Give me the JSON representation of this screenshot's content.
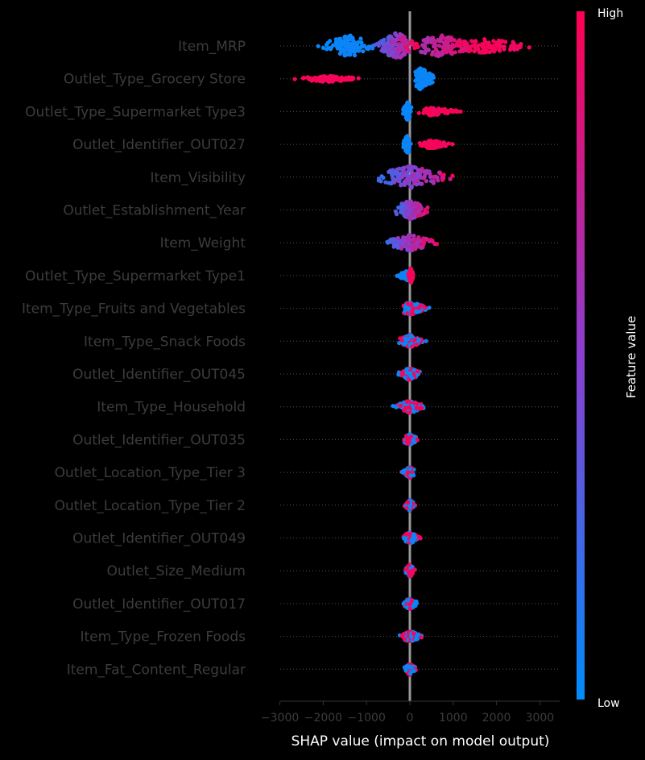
{
  "chart_data": {
    "type": "scatter",
    "subtype": "shap-beeswarm",
    "title": "",
    "xlabel": "SHAP value (impact on model output)",
    "ylabel": "",
    "xlim": [
      -3000,
      3400
    ],
    "xticks": [
      -3000,
      -2000,
      -1000,
      0,
      1000,
      2000,
      3000
    ],
    "xtick_labels": [
      "−3000",
      "−2000",
      "−1000",
      "0",
      "1000",
      "2000",
      "3000"
    ],
    "grid": false,
    "colorbar": {
      "label": "Feature value",
      "high_label": "High",
      "low_label": "Low",
      "low_color": "#008bfb",
      "high_color": "#ff0052"
    },
    "features": [
      {
        "name": "Item_MRP",
        "clusters": [
          {
            "min": -2200,
            "max": -700,
            "peak": -1400,
            "width": 14,
            "count": 120,
            "color": "blue"
          },
          {
            "min": -900,
            "max": 300,
            "peak": -300,
            "width": 17,
            "count": 150,
            "color": "mixed"
          },
          {
            "min": 0,
            "max": 1700,
            "peak": 700,
            "width": 14,
            "count": 140,
            "color": "mixed-red"
          },
          {
            "min": 1000,
            "max": 3200,
            "peak": 1700,
            "width": 9,
            "count": 90,
            "color": "red"
          }
        ]
      },
      {
        "name": "Outlet_Type_Grocery Store",
        "clusters": [
          {
            "min": -2800,
            "max": -1000,
            "peak": -1900,
            "width": 4,
            "count": 110,
            "color": "red"
          },
          {
            "min": 100,
            "max": 650,
            "peak": 250,
            "width": 14,
            "count": 100,
            "color": "blue"
          }
        ]
      },
      {
        "name": "Outlet_Type_Supermarket Type3",
        "clusters": [
          {
            "min": -200,
            "max": 50,
            "peak": -50,
            "width": 12,
            "count": 70,
            "color": "blue"
          },
          {
            "min": 150,
            "max": 1300,
            "peak": 500,
            "width": 5,
            "count": 80,
            "color": "red"
          }
        ]
      },
      {
        "name": "Outlet_Identifier_OUT027",
        "clusters": [
          {
            "min": -200,
            "max": 50,
            "peak": -50,
            "width": 12,
            "count": 70,
            "color": "blue"
          },
          {
            "min": 150,
            "max": 1100,
            "peak": 500,
            "width": 5,
            "count": 80,
            "color": "red"
          }
        ]
      },
      {
        "name": "Item_Visibility",
        "clusters": [
          {
            "min": -850,
            "max": 1300,
            "peak": 0,
            "width": 14,
            "count": 150,
            "color": "mixed"
          }
        ]
      },
      {
        "name": "Outlet_Establishment_Year",
        "clusters": [
          {
            "min": -400,
            "max": 550,
            "peak": 0,
            "width": 12,
            "count": 130,
            "color": "mixed"
          }
        ]
      },
      {
        "name": "Item_Weight",
        "clusters": [
          {
            "min": -700,
            "max": 750,
            "peak": 0,
            "width": 10,
            "count": 130,
            "color": "mixed"
          }
        ]
      },
      {
        "name": "Outlet_Type_Supermarket Type1",
        "clusters": [
          {
            "min": -350,
            "max": 0,
            "peak": -50,
            "width": 6,
            "count": 60,
            "color": "blue"
          },
          {
            "min": -50,
            "max": 100,
            "peak": 20,
            "width": 10,
            "count": 60,
            "color": "red"
          }
        ]
      },
      {
        "name": "Item_Type_Fruits and Vegetables",
        "clusters": [
          {
            "min": -250,
            "max": 550,
            "peak": 0,
            "width": 8,
            "count": 110,
            "color": "blue-red"
          }
        ]
      },
      {
        "name": "Item_Type_Snack Foods",
        "clusters": [
          {
            "min": -300,
            "max": 400,
            "peak": 0,
            "width": 8,
            "count": 110,
            "color": "blue-red"
          }
        ]
      },
      {
        "name": "Outlet_Identifier_OUT045",
        "clusters": [
          {
            "min": -350,
            "max": 300,
            "peak": 0,
            "width": 8,
            "count": 100,
            "color": "blue-red"
          }
        ]
      },
      {
        "name": "Item_Type_Household",
        "clusters": [
          {
            "min": -450,
            "max": 400,
            "peak": 0,
            "width": 8,
            "count": 110,
            "color": "blue-red"
          }
        ]
      },
      {
        "name": "Outlet_Identifier_OUT035",
        "clusters": [
          {
            "min": -200,
            "max": 250,
            "peak": 0,
            "width": 7,
            "count": 90,
            "color": "blue-red"
          }
        ]
      },
      {
        "name": "Outlet_Location_Type_Tier 3",
        "clusters": [
          {
            "min": -200,
            "max": 100,
            "peak": 0,
            "width": 7,
            "count": 80,
            "color": "blue-red"
          }
        ]
      },
      {
        "name": "Outlet_Location_Type_Tier 2",
        "clusters": [
          {
            "min": -150,
            "max": 150,
            "peak": 0,
            "width": 7,
            "count": 80,
            "color": "blue-red"
          }
        ]
      },
      {
        "name": "Outlet_Identifier_OUT049",
        "clusters": [
          {
            "min": -200,
            "max": 300,
            "peak": 0,
            "width": 7,
            "count": 90,
            "color": "blue-red"
          }
        ]
      },
      {
        "name": "Outlet_Size_Medium",
        "clusters": [
          {
            "min": -150,
            "max": 150,
            "peak": 0,
            "width": 8,
            "count": 80,
            "color": "red-blue"
          }
        ]
      },
      {
        "name": "Outlet_Identifier_OUT017",
        "clusters": [
          {
            "min": -200,
            "max": 250,
            "peak": 0,
            "width": 7,
            "count": 90,
            "color": "blue-red"
          }
        ]
      },
      {
        "name": "Item_Type_Frozen Foods",
        "clusters": [
          {
            "min": -300,
            "max": 350,
            "peak": 0,
            "width": 7,
            "count": 100,
            "color": "blue-red"
          }
        ]
      },
      {
        "name": "Item_Fat_Content_Regular",
        "clusters": [
          {
            "min": -150,
            "max": 200,
            "peak": 0,
            "width": 7,
            "count": 80,
            "color": "blue-red"
          }
        ]
      }
    ]
  }
}
